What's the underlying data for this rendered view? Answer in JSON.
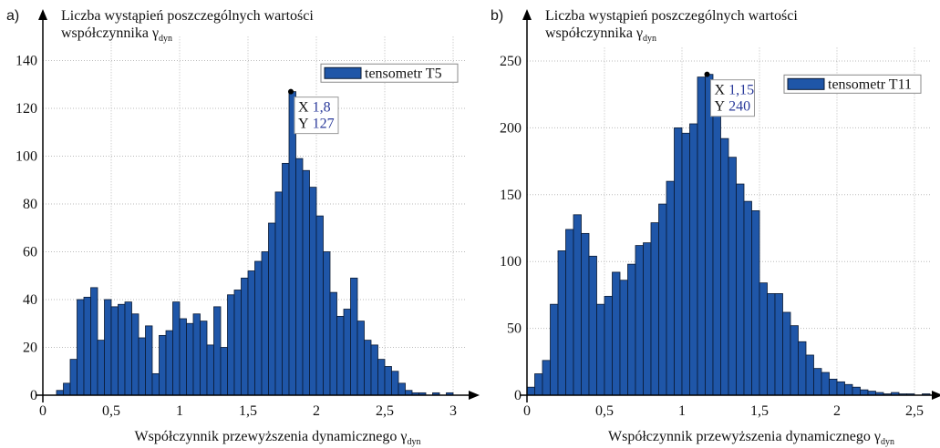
{
  "chart_data": [
    {
      "type": "histogram",
      "panel": "a)",
      "y_label": [
        "Liczba wystąpień poszczególnych wartości",
        "współczynnika γ"
      ],
      "y_label_sub": "dyn",
      "x_label": "Współczynnik przewyższenia dynamicznego γ",
      "x_label_sub": "dyn",
      "series": [
        {
          "name": "tensometr T5",
          "color": "#1f56a8",
          "values": [
            2,
            5,
            15,
            40,
            41,
            45,
            23,
            40,
            37,
            38,
            39,
            34,
            24,
            29,
            9,
            25,
            27,
            39,
            32,
            30,
            34,
            31,
            21,
            37,
            20,
            42,
            44,
            49,
            52,
            56,
            60,
            72,
            85,
            97,
            127,
            99,
            94,
            87,
            75,
            60,
            43,
            33,
            36,
            49,
            31,
            23,
            21,
            15,
            12,
            10,
            5,
            2,
            1,
            1,
            0,
            1,
            0,
            1
          ]
        }
      ],
      "bins": [
        0.1,
        0.15,
        0.2,
        0.25,
        0.3,
        0.35,
        0.4,
        0.45,
        0.5,
        0.55,
        0.6,
        0.65,
        0.7,
        0.75,
        0.8,
        0.85,
        0.9,
        0.95,
        1,
        1.05,
        1.1,
        1.15,
        1.2,
        1.25,
        1.3,
        1.35,
        1.4,
        1.45,
        1.5,
        1.55,
        1.6,
        1.65,
        1.7,
        1.75,
        1.8,
        1.85,
        1.9,
        1.95,
        2,
        2.05,
        2.1,
        2.15,
        2.2,
        2.25,
        2.3,
        2.35,
        2.4,
        2.45,
        2.5,
        2.55,
        2.6,
        2.65,
        2.7,
        2.75,
        2.8,
        2.85,
        2.9,
        2.95,
        3
      ],
      "xlim": [
        0,
        3.1
      ],
      "ylim": [
        0,
        150
      ],
      "xticks": [
        0,
        {
          "value": 0.5,
          "label": "0,5"
        },
        1,
        {
          "value": 1.5,
          "label": "1,5"
        },
        2,
        {
          "value": 2.5,
          "label": "2,5"
        },
        3
      ],
      "yticks": [
        0,
        20,
        40,
        60,
        80,
        100,
        120,
        140
      ],
      "grid": true,
      "tooltip": {
        "x_label": "X",
        "x": "1,8",
        "y_label": "Y",
        "y": "127"
      }
    },
    {
      "type": "histogram",
      "panel": "b)",
      "y_label": [
        "Liczba wystąpień poszczególnych wartości",
        "współczynnika γ"
      ],
      "y_label_sub": "dyn",
      "x_label": "Współczynnik przewyższenia dynamicznego γ",
      "x_label_sub": "dyn",
      "series": [
        {
          "name": "tensometr T11",
          "color": "#1f56a8",
          "values": [
            6,
            16,
            26,
            68,
            108,
            124,
            135,
            121,
            104,
            68,
            74,
            92,
            86,
            98,
            112,
            114,
            129,
            143,
            160,
            200,
            196,
            203,
            238,
            240,
            225,
            192,
            178,
            158,
            145,
            138,
            84,
            76,
            76,
            62,
            52,
            40,
            30,
            20,
            17,
            12,
            10,
            8,
            6,
            4,
            3,
            2,
            1,
            2,
            1,
            1,
            0,
            1
          ]
        }
      ],
      "bins": [
        0,
        0.05,
        0.1,
        0.15,
        0.2,
        0.25,
        0.3,
        0.35,
        0.4,
        0.45,
        0.5,
        0.55,
        0.6,
        0.65,
        0.7,
        0.75,
        0.8,
        0.85,
        0.9,
        0.95,
        1,
        1.05,
        1.1,
        1.15,
        1.2,
        1.25,
        1.3,
        1.35,
        1.4,
        1.45,
        1.5,
        1.55,
        1.6,
        1.65,
        1.7,
        1.75,
        1.8,
        1.85,
        1.9,
        1.95,
        2,
        2.05,
        2.1,
        2.15,
        2.2,
        2.25,
        2.3,
        2.35,
        2.4,
        2.45,
        2.5,
        2.55,
        2.6
      ],
      "xlim": [
        0,
        2.6
      ],
      "ylim": [
        0,
        260
      ],
      "xticks": [
        0,
        {
          "value": 0.5,
          "label": "0,5"
        },
        1,
        {
          "value": 1.5,
          "label": "1,5"
        },
        2,
        {
          "value": 2.5,
          "label": "2,5"
        }
      ],
      "yticks": [
        0,
        50,
        100,
        150,
        200,
        250
      ],
      "grid": true,
      "tooltip": {
        "x_label": "X",
        "x": "1,15",
        "y_label": "Y",
        "y": "240"
      }
    }
  ]
}
